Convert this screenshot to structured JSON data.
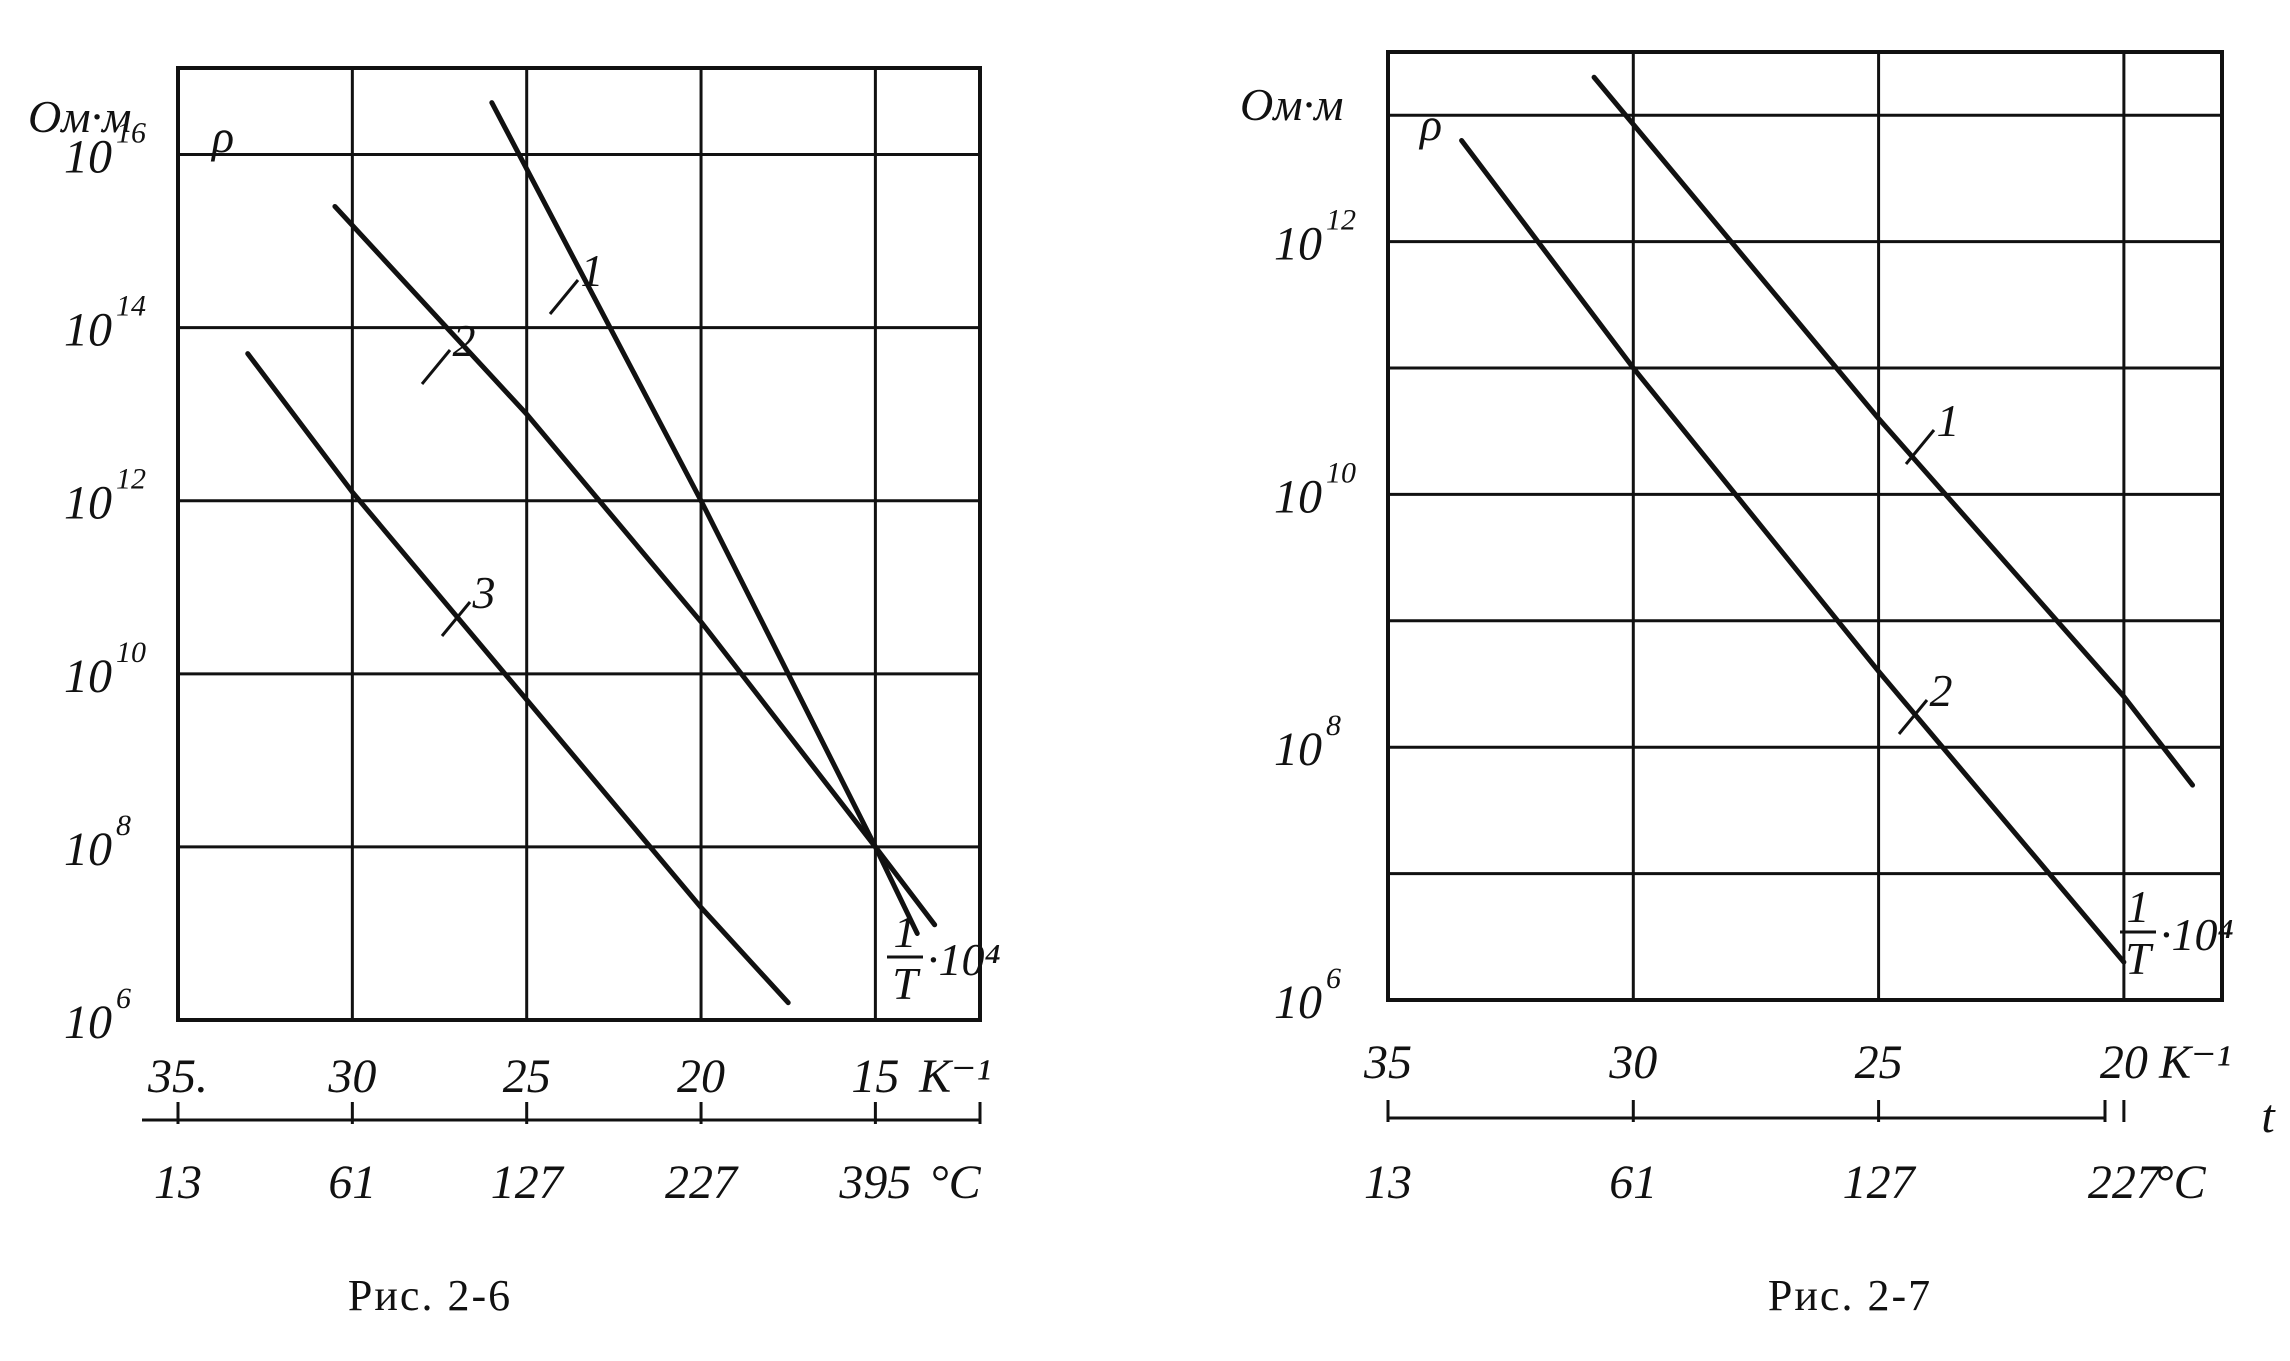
{
  "chart_data": [
    {
      "id": "fig-2-6",
      "type": "line",
      "caption": "Рис. 2-6",
      "y_unit": "Ом·м",
      "y_symbol": "ρ",
      "y_scale": "log",
      "ylim_exp": [
        6,
        17
      ],
      "y_ticks": [
        {
          "base": "10",
          "exp": "6",
          "value": 6
        },
        {
          "base": "10",
          "exp": "8",
          "value": 8
        },
        {
          "base": "10",
          "exp": "10",
          "value": 10
        },
        {
          "base": "10",
          "exp": "12",
          "value": 12
        },
        {
          "base": "10",
          "exp": "14",
          "value": 14
        },
        {
          "base": "10",
          "exp": "16",
          "value": 16
        }
      ],
      "x_unit": "K⁻¹",
      "x_axis_label": {
        "numer": "1",
        "denom": "T",
        "mult": "·10⁴"
      },
      "xlim": [
        35,
        12
      ],
      "x_ticks": [
        {
          "label": "35.",
          "value": 35
        },
        {
          "label": "30",
          "value": 30
        },
        {
          "label": "25",
          "value": 25
        },
        {
          "label": "20",
          "value": 20
        },
        {
          "label": "15",
          "value": 15
        }
      ],
      "t_unit": "°C",
      "t_ticks": [
        {
          "label": "13",
          "x": 35
        },
        {
          "label": "61",
          "x": 30
        },
        {
          "label": "127",
          "x": 25
        },
        {
          "label": "227",
          "x": 20
        },
        {
          "label": "395",
          "x": 15
        }
      ],
      "grid": true,
      "series": [
        {
          "name": "1",
          "x": [
            26.0,
            20.0,
            15.0,
            13.8
          ],
          "log_rho": [
            16.6,
            12.0,
            8.0,
            7.0
          ]
        },
        {
          "name": "2",
          "x": [
            30.5,
            25.0,
            20.0,
            15.0,
            13.3
          ],
          "log_rho": [
            15.4,
            13.0,
            10.6,
            8.0,
            7.1
          ]
        },
        {
          "name": "3",
          "x": [
            33.0,
            30.0,
            25.0,
            20.0,
            17.5
          ],
          "log_rho": [
            13.7,
            12.1,
            9.7,
            7.3,
            6.2
          ]
        }
      ]
    },
    {
      "id": "fig-2-7",
      "type": "line",
      "caption": "Рис. 2-7",
      "y_unit": "Ом·м",
      "y_symbol": "ρ",
      "y_scale": "log",
      "ylim_exp": [
        6,
        13.5
      ],
      "y_ticks": [
        {
          "base": "10",
          "exp": "6",
          "value": 6
        },
        {
          "base": "10",
          "exp": "8",
          "value": 8
        },
        {
          "base": "10",
          "exp": "10",
          "value": 10
        },
        {
          "base": "10",
          "exp": "12",
          "value": 12
        }
      ],
      "x_unit": "K⁻¹",
      "x_axis_label": {
        "numer": "1",
        "denom": "T",
        "mult": "·10⁴"
      },
      "xlim": [
        35,
        18
      ],
      "x_ticks": [
        {
          "label": "35",
          "value": 35
        },
        {
          "label": "30",
          "value": 30
        },
        {
          "label": "25",
          "value": 25
        },
        {
          "label": "20",
          "value": 20
        }
      ],
      "t_symbol": "t",
      "t_unit": "°C",
      "t_ticks": [
        {
          "label": "13",
          "x": 35
        },
        {
          "label": "61",
          "x": 30
        },
        {
          "label": "127",
          "x": 25
        },
        {
          "label": "227",
          "x": 20
        }
      ],
      "grid": true,
      "series": [
        {
          "name": "1",
          "x": [
            30.8,
            25.0,
            20.0,
            18.6
          ],
          "log_rho": [
            13.3,
            10.6,
            8.4,
            7.7
          ]
        },
        {
          "name": "2",
          "x": [
            33.5,
            30.0,
            25.0,
            20.0
          ],
          "log_rho": [
            12.8,
            11.0,
            8.6,
            6.3
          ]
        }
      ]
    }
  ]
}
